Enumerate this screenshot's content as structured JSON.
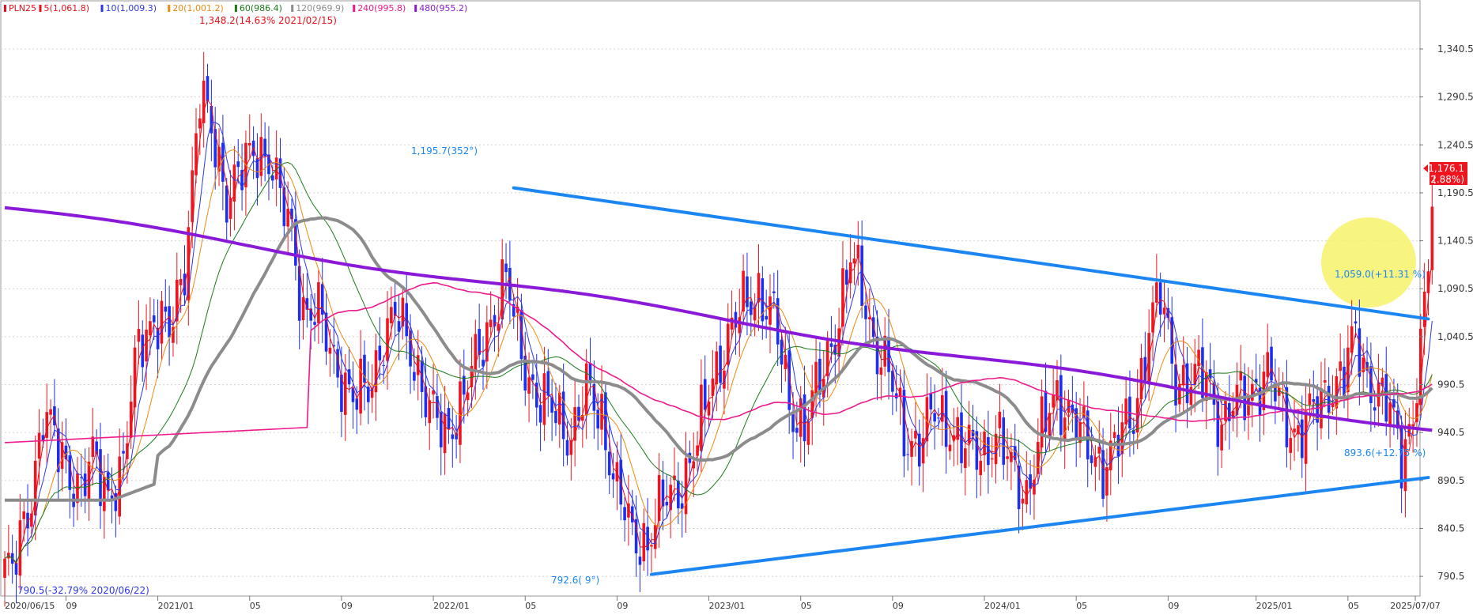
{
  "legend": [
    {
      "text": "PLN25",
      "color": "#e8101c"
    },
    {
      "text": "5(1,061.8)",
      "color": "#e8101c"
    },
    {
      "text": "10(1,009.3)",
      "color": "#2b36e8"
    },
    {
      "text": "20(1,001.2)",
      "color": "#f08a10"
    },
    {
      "text": "60(986.4)",
      "color": "#1a7a1a"
    },
    {
      "text": "120(969.9)",
      "color": "#8c8c8c"
    },
    {
      "text": "240(995.8)",
      "color": "#ee1a8c"
    },
    {
      "text": "480(955.2)",
      "color": "#8a1ad8"
    }
  ],
  "colors": {
    "up": "#f0141e",
    "down": "#1c2ff0",
    "ma5": "#e8101c",
    "ma10": "#2b36e8",
    "ma20": "#f08a10",
    "ma60": "#1a7a1a",
    "ma120": "#8c8c8c",
    "ma240": "#ee1a8c",
    "ma480": "#8a1ad8",
    "trendline": "#1b86f2",
    "highlight": "#f7f26a"
  },
  "chart_data": {
    "type": "candlestick",
    "symbol": "PLN25",
    "ylim": [
      770,
      1385
    ],
    "y_ticks": [
      "1,340.5",
      "1,290.5",
      "1,240.5",
      "1,190.5",
      "1,140.5",
      "1,090.5",
      "1,040.5",
      "990.5",
      "940.5",
      "890.5",
      "840.5",
      "790.5"
    ],
    "x_ticks": [
      "2020/06/15",
      "09",
      "2021/01",
      "05",
      "09",
      "2022/01",
      "05",
      "09",
      "2023/01",
      "05",
      "09",
      "2024/01",
      "05",
      "09",
      "2025/01",
      "05",
      "2025/07/07"
    ],
    "current_price": {
      "value": "1,176.1",
      "change": "2.88%"
    },
    "annotations": {
      "high": "1,348.2(14.63% 2021/02/15)",
      "low": "790.5(-32.79% 2020/06/22)",
      "peak": "1,195.7(352°)",
      "trough": "792.6( 9°)",
      "upper_line_end": "1,059.0(+11.31 %)",
      "lower_line_end": "893.6(+12.75 %)"
    },
    "trendlines": [
      {
        "name": "upper",
        "from": {
          "bar": 133,
          "value": 1195.7
        },
        "to": {
          "bar": 372,
          "value": 1059.0
        }
      },
      {
        "name": "lower",
        "from": {
          "bar": 169,
          "value": 792.6
        },
        "to": {
          "bar": 372,
          "value": 893.6
        }
      }
    ],
    "moving_averages": [
      {
        "name": "ma5",
        "period": 5
      },
      {
        "name": "ma10",
        "period": 10
      },
      {
        "name": "ma20",
        "period": 20
      },
      {
        "name": "ma60",
        "period": 60
      },
      {
        "name": "ma120",
        "period": 120
      },
      {
        "name": "ma240",
        "period": 240
      },
      {
        "name": "ma480",
        "period": 480
      }
    ],
    "anchors": [
      [
        0,
        800
      ],
      [
        2,
        790
      ],
      [
        7,
        880
      ],
      [
        10,
        960
      ],
      [
        13,
        930
      ],
      [
        17,
        900
      ],
      [
        20,
        880
      ],
      [
        23,
        910
      ],
      [
        27,
        880
      ],
      [
        31,
        900
      ],
      [
        35,
        1040
      ],
      [
        39,
        1060
      ],
      [
        43,
        1040
      ],
      [
        47,
        1120
      ],
      [
        51,
        1290
      ],
      [
        55,
        1240
      ],
      [
        58,
        1190
      ],
      [
        62,
        1210
      ],
      [
        66,
        1240
      ],
      [
        69,
        1230
      ],
      [
        72,
        1180
      ],
      [
        75,
        1150
      ],
      [
        78,
        1070
      ],
      [
        82,
        1060
      ],
      [
        85,
        1030
      ],
      [
        88,
        1000
      ],
      [
        91,
        970
      ],
      [
        95,
        990
      ],
      [
        99,
        1040
      ],
      [
        103,
        1060
      ],
      [
        107,
        1020
      ],
      [
        111,
        960
      ],
      [
        115,
        940
      ],
      [
        119,
        970
      ],
      [
        123,
        1010
      ],
      [
        127,
        1060
      ],
      [
        131,
        1100
      ],
      [
        134,
        1040
      ],
      [
        137,
        1000
      ],
      [
        140,
        970
      ],
      [
        144,
        960
      ],
      [
        148,
        940
      ],
      [
        152,
        980
      ],
      [
        156,
        960
      ],
      [
        160,
        880
      ],
      [
        164,
        830
      ],
      [
        168,
        830
      ],
      [
        170,
        850
      ],
      [
        173,
        870
      ],
      [
        177,
        890
      ],
      [
        181,
        930
      ],
      [
        185,
        1000
      ],
      [
        189,
        1040
      ],
      [
        193,
        1070
      ],
      [
        197,
        1090
      ],
      [
        201,
        1060
      ],
      [
        205,
        970
      ],
      [
        209,
        950
      ],
      [
        213,
        990
      ],
      [
        217,
        1050
      ],
      [
        221,
        1120
      ],
      [
        224,
        1090
      ],
      [
        227,
        1040
      ],
      [
        231,
        1000
      ],
      [
        235,
        940
      ],
      [
        239,
        930
      ],
      [
        243,
        960
      ],
      [
        247,
        950
      ],
      [
        251,
        920
      ],
      [
        255,
        920
      ],
      [
        259,
        940
      ],
      [
        263,
        900
      ],
      [
        267,
        880
      ],
      [
        271,
        940
      ],
      [
        275,
        980
      ],
      [
        279,
        960
      ],
      [
        283,
        920
      ],
      [
        287,
        910
      ],
      [
        291,
        930
      ],
      [
        295,
        960
      ],
      [
        299,
        1050
      ],
      [
        302,
        1080
      ],
      [
        306,
        1000
      ],
      [
        310,
        990
      ],
      [
        314,
        1000
      ],
      [
        318,
        950
      ],
      [
        322,
        970
      ],
      [
        326,
        990
      ],
      [
        330,
        1000
      ],
      [
        334,
        960
      ],
      [
        338,
        940
      ],
      [
        342,
        960
      ],
      [
        346,
        990
      ],
      [
        350,
        1000
      ],
      [
        353,
        1040
      ],
      [
        356,
        1000
      ],
      [
        359,
        980
      ],
      [
        362,
        960
      ],
      [
        365,
        920
      ],
      [
        368,
        960
      ],
      [
        371,
        1060
      ],
      [
        373,
        1176
      ]
    ]
  }
}
